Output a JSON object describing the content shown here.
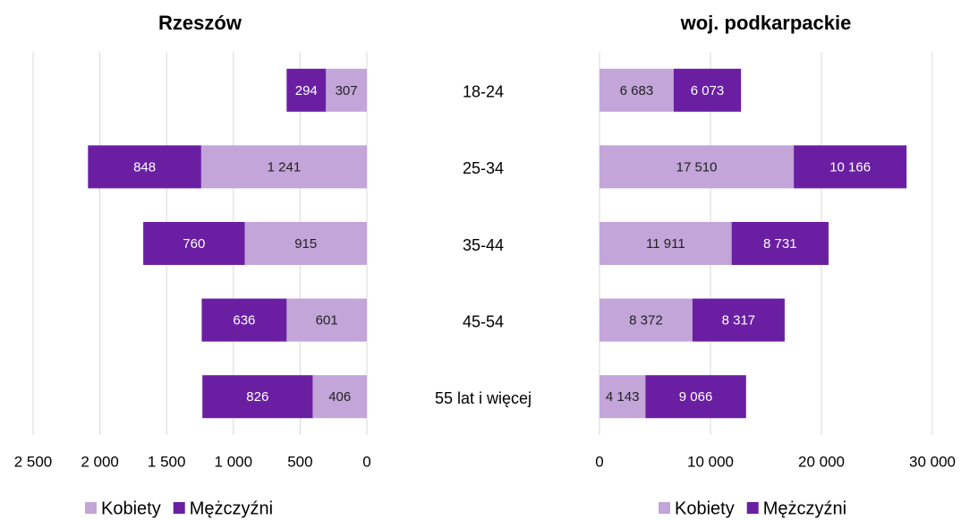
{
  "chart_data": [
    {
      "type": "bar",
      "orientation": "horizontal",
      "stacked": true,
      "x_reversed": true,
      "grid": true,
      "legend": "bottom",
      "title": "Rzeszów",
      "categories": [
        "18-24",
        "25-34",
        "35-44",
        "45-54",
        "55 lat i więcej"
      ],
      "series": [
        {
          "name": "Kobiety",
          "color": "#c3a5d9",
          "values": [
            307,
            1241,
            915,
            601,
            406
          ],
          "value_labels": [
            "307",
            "1 241",
            "915",
            "601",
            "406"
          ]
        },
        {
          "name": "Mężczyźni",
          "color": "#6a1fa3",
          "values": [
            294,
            848,
            760,
            636,
            826
          ]
        }
      ],
      "xlim": [
        0,
        2500
      ],
      "xticks": [
        0,
        500,
        {
          "value": 1000,
          "label": "1 000"
        },
        {
          "value": 1500,
          "label": "1 500"
        },
        {
          "value": 2000,
          "label": "2 000"
        },
        {
          "value": 2500,
          "label": "2 500"
        }
      ]
    },
    {
      "type": "bar",
      "orientation": "horizontal",
      "stacked": true,
      "grid": true,
      "legend": "bottom",
      "title": "woj. podkarpackie",
      "series": [
        {
          "name": "Kobiety",
          "color": "#c3a5d9",
          "values": [
            6683,
            17510,
            11911,
            8372,
            4143
          ],
          "value_labels": [
            "6 683",
            "17 510",
            "11 911",
            "8 372",
            "4 143"
          ]
        },
        {
          "name": "Mężczyźni",
          "color": "#6a1fa3",
          "values": [
            6073,
            10166,
            8731,
            8317,
            9066
          ],
          "value_labels": [
            "6 073",
            "10 166",
            "8 731",
            "8 317",
            "9 066"
          ]
        }
      ],
      "xlim": [
        0,
        30000
      ],
      "xticks": [
        0,
        {
          "value": 10000,
          "label": "10 000"
        },
        {
          "value": 20000,
          "label": "20 000"
        },
        {
          "value": 30000,
          "label": "30 000"
        }
      ]
    }
  ]
}
